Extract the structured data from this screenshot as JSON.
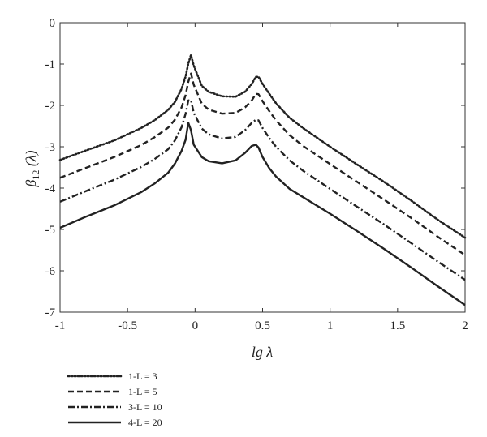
{
  "chart_data": {
    "type": "line",
    "title": "",
    "xlabel": "lg λ",
    "ylabel_main": "β",
    "ylabel_sub": "12",
    "ylabel_tail": " (λ)",
    "xlim": [
      -1,
      2
    ],
    "ylim": [
      -7,
      0
    ],
    "xticks": [
      -1,
      -0.5,
      0,
      0.5,
      1,
      1.5,
      2
    ],
    "xtick_labels": [
      "-1",
      "-0.5",
      "0",
      "0.5",
      "1",
      "1.5",
      "2"
    ],
    "yticks": [
      0,
      -1,
      -2,
      -3,
      -4,
      -5,
      -6,
      -7
    ],
    "ytick_labels": [
      "0",
      "-1",
      "-2",
      "-3",
      "-4",
      "-5",
      "-6",
      "-7"
    ],
    "grid": false,
    "legend_position": "below-left",
    "series": [
      {
        "name": "1-L = 3",
        "dash": "dotted",
        "color": "#222222",
        "x": [
          -1,
          -0.8,
          -0.6,
          -0.4,
          -0.3,
          -0.2,
          -0.15,
          -0.1,
          -0.07,
          -0.05,
          -0.03,
          -0.01,
          0.05,
          0.1,
          0.2,
          0.3,
          0.37,
          0.42,
          0.45,
          0.47,
          0.5,
          0.55,
          0.6,
          0.7,
          0.8,
          1.0,
          1.2,
          1.4,
          1.6,
          1.8,
          2.0
        ],
        "y": [
          -3.32,
          -3.08,
          -2.85,
          -2.55,
          -2.36,
          -2.11,
          -1.92,
          -1.6,
          -1.3,
          -0.99,
          -0.78,
          -1.04,
          -1.53,
          -1.67,
          -1.78,
          -1.79,
          -1.67,
          -1.48,
          -1.31,
          -1.31,
          -1.48,
          -1.72,
          -1.95,
          -2.3,
          -2.55,
          -3.0,
          -3.43,
          -3.85,
          -4.3,
          -4.77,
          -5.2
        ]
      },
      {
        "name": "1-L = 5",
        "dash": "dashed",
        "color": "#222222",
        "x": [
          -1,
          -0.8,
          -0.6,
          -0.4,
          -0.3,
          -0.2,
          -0.15,
          -0.1,
          -0.07,
          -0.05,
          -0.03,
          -0.01,
          0.05,
          0.1,
          0.2,
          0.3,
          0.37,
          0.42,
          0.45,
          0.47,
          0.5,
          0.55,
          0.6,
          0.7,
          0.8,
          1.0,
          1.2,
          1.4,
          1.6,
          1.8,
          2.0
        ],
        "y": [
          -3.75,
          -3.5,
          -3.25,
          -2.96,
          -2.77,
          -2.54,
          -2.35,
          -2.05,
          -1.75,
          -1.43,
          -1.23,
          -1.5,
          -1.96,
          -2.1,
          -2.2,
          -2.18,
          -2.05,
          -1.88,
          -1.72,
          -1.73,
          -1.9,
          -2.14,
          -2.36,
          -2.72,
          -2.98,
          -3.42,
          -3.85,
          -4.28,
          -4.72,
          -5.18,
          -5.62
        ]
      },
      {
        "name": "3-L = 10",
        "dash": "dashdot",
        "color": "#222222",
        "x": [
          -1,
          -0.8,
          -0.6,
          -0.4,
          -0.3,
          -0.2,
          -0.15,
          -0.1,
          -0.07,
          -0.05,
          -0.03,
          -0.01,
          0.05,
          0.1,
          0.2,
          0.3,
          0.37,
          0.42,
          0.45,
          0.47,
          0.5,
          0.55,
          0.6,
          0.7,
          0.8,
          1.0,
          1.2,
          1.4,
          1.6,
          1.8,
          2.0
        ],
        "y": [
          -4.33,
          -4.06,
          -3.8,
          -3.49,
          -3.3,
          -3.06,
          -2.85,
          -2.53,
          -2.2,
          -1.88,
          -1.87,
          -2.18,
          -2.56,
          -2.7,
          -2.8,
          -2.76,
          -2.6,
          -2.42,
          -2.35,
          -2.36,
          -2.55,
          -2.79,
          -3.0,
          -3.33,
          -3.58,
          -4.02,
          -4.45,
          -4.88,
          -5.33,
          -5.78,
          -6.22
        ]
      },
      {
        "name": "4-L = 20",
        "dash": "solid",
        "color": "#222222",
        "x": [
          -1,
          -0.8,
          -0.6,
          -0.4,
          -0.3,
          -0.2,
          -0.15,
          -0.1,
          -0.07,
          -0.05,
          -0.03,
          -0.01,
          0.05,
          0.1,
          0.2,
          0.3,
          0.37,
          0.42,
          0.45,
          0.47,
          0.5,
          0.55,
          0.6,
          0.7,
          0.8,
          1.0,
          1.2,
          1.4,
          1.6,
          1.8,
          2.0
        ],
        "y": [
          -4.96,
          -4.68,
          -4.42,
          -4.1,
          -3.89,
          -3.63,
          -3.41,
          -3.1,
          -2.83,
          -2.42,
          -2.6,
          -2.95,
          -3.25,
          -3.35,
          -3.4,
          -3.33,
          -3.15,
          -2.98,
          -2.95,
          -3.02,
          -3.25,
          -3.52,
          -3.72,
          -4.02,
          -4.22,
          -4.62,
          -5.04,
          -5.47,
          -5.92,
          -6.38,
          -6.83
        ]
      }
    ]
  }
}
